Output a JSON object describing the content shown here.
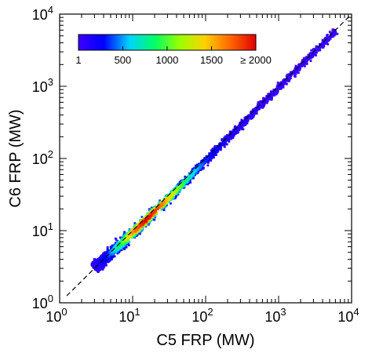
{
  "chart_data": {
    "type": "scatter",
    "title": "",
    "xlabel": "C5 FRP (MW)",
    "ylabel": "C6 FRP (MW)",
    "xscale": "log",
    "yscale": "log",
    "xlim": [
      1,
      10000
    ],
    "ylim": [
      1,
      10000
    ],
    "x_ticks": [
      {
        "base": "10",
        "exp": "0"
      },
      {
        "base": "10",
        "exp": "1"
      },
      {
        "base": "10",
        "exp": "2"
      },
      {
        "base": "10",
        "exp": "3"
      },
      {
        "base": "10",
        "exp": "4"
      }
    ],
    "y_ticks": [
      {
        "base": "10",
        "exp": "0"
      },
      {
        "base": "10",
        "exp": "1"
      },
      {
        "base": "10",
        "exp": "2"
      },
      {
        "base": "10",
        "exp": "3"
      },
      {
        "base": "10",
        "exp": "4"
      }
    ],
    "reference_line": {
      "style": "dashed",
      "color": "#000000",
      "relation": "1:1"
    },
    "density_ridge": [
      {
        "x": 3.0,
        "y": 3.1,
        "density": 80
      },
      {
        "x": 4.5,
        "y": 4.4,
        "density": 300
      },
      {
        "x": 7.0,
        "y": 6.7,
        "density": 900
      },
      {
        "x": 10.0,
        "y": 9.5,
        "density": 1600
      },
      {
        "x": 15.0,
        "y": 14.0,
        "density": 2000
      },
      {
        "x": 22.0,
        "y": 20.5,
        "density": 1800
      },
      {
        "x": 35.0,
        "y": 32.0,
        "density": 1300
      },
      {
        "x": 60.0,
        "y": 56.0,
        "density": 700
      },
      {
        "x": 100.0,
        "y": 95.0,
        "density": 350
      },
      {
        "x": 200.0,
        "y": 192.0,
        "density": 150
      },
      {
        "x": 500.0,
        "y": 485.0,
        "density": 60
      },
      {
        "x": 1000.0,
        "y": 975.0,
        "density": 25
      },
      {
        "x": 3000.0,
        "y": 2950.0,
        "density": 8
      },
      {
        "x": 6000.0,
        "y": 5900.0,
        "density": 3
      }
    ],
    "colorbar": {
      "colormap": "rainbow",
      "colors": [
        "#3b00ff",
        "#0000ff",
        "#00d2ff",
        "#00ff66",
        "#9bff00",
        "#ffd000",
        "#ff6600",
        "#e00000"
      ],
      "tick_labels": [
        "1",
        "500",
        "1000",
        "1500",
        "≥ 2000"
      ],
      "tick_values": [
        1,
        500,
        1000,
        1500,
        2000
      ]
    },
    "grid": false,
    "legend": "none"
  }
}
